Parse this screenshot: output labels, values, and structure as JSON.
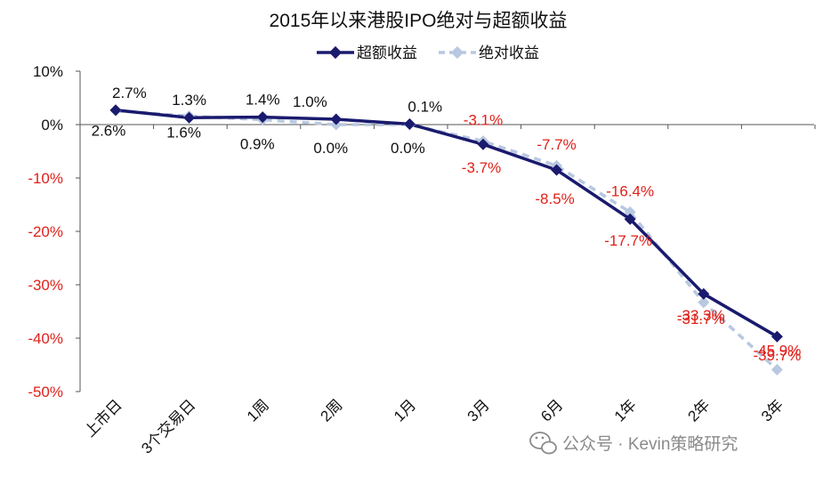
{
  "chart_data": {
    "type": "line",
    "title": "2015年以来港股IPO绝对与超额收益",
    "xlabel": "",
    "ylabel": "",
    "categories": [
      "上市日",
      "3个交易日",
      "1周",
      "2周",
      "1月",
      "3月",
      "6月",
      "1年",
      "2年",
      "3年"
    ],
    "ylim": [
      -50,
      10
    ],
    "yticks": [
      10,
      0,
      -10,
      -20,
      -30,
      -40,
      -50
    ],
    "ytick_labels": [
      "10%",
      "0%",
      "-10%",
      "-20%",
      "-30%",
      "-40%",
      "-50%"
    ],
    "grid": false,
    "legend_position": "top-center",
    "series": [
      {
        "name": "超额收益",
        "values": [
          2.7,
          1.3,
          1.4,
          1.0,
          0.1,
          -3.7,
          -8.5,
          -17.7,
          -31.7,
          -39.7
        ],
        "labels": [
          "2.7%",
          "1.3%",
          "1.4%",
          "1.0%",
          "0.1%",
          "-3.7%",
          "-8.5%",
          "-17.7%",
          "-31.7%",
          "-39.7%"
        ],
        "color": "#1a1a6e",
        "style": "solid",
        "marker": "diamond"
      },
      {
        "name": "绝对收益",
        "values": [
          2.6,
          1.6,
          0.9,
          0.0,
          0.0,
          -3.1,
          -7.7,
          -16.4,
          -33.3,
          -45.9
        ],
        "labels": [
          "2.6%",
          "1.6%",
          "0.9%",
          "0.0%",
          "0.0%",
          "-3.1%",
          "-7.7%",
          "-16.4%",
          "-33.3%",
          "-45.9%"
        ],
        "color": "#b8c8e0",
        "style": "dashed",
        "marker": "diamond"
      }
    ],
    "positive_label_color": "#111111",
    "negative_label_color": "#e0201a"
  },
  "watermark": {
    "icon": "wechat-icon",
    "text": "公众号 · Kevin策略研究"
  }
}
